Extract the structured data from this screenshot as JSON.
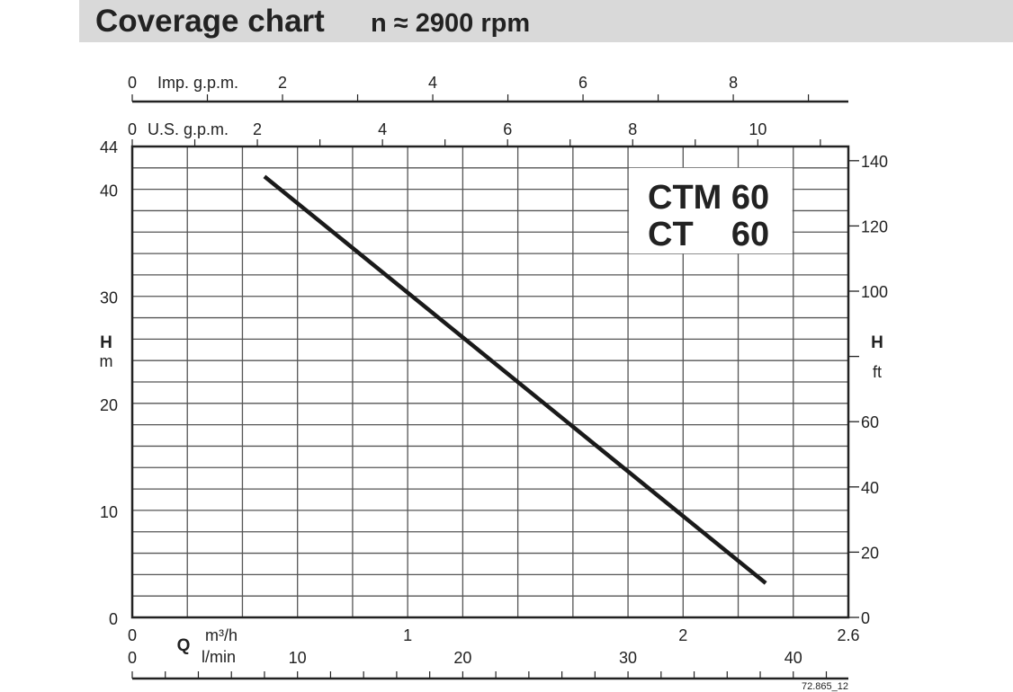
{
  "header": {
    "title": "Coverage chart",
    "speed": "n ≈ 2900 rpm"
  },
  "chart_data": {
    "type": "line",
    "title": "Coverage chart",
    "model_label": [
      "CTM 60",
      "CT    60"
    ],
    "xlabel": "Q",
    "x_units": {
      "primary": "m³/h",
      "secondary": "l/min",
      "top1": "U.S. g.p.m.",
      "top2": "Imp. g.p.m."
    },
    "ylabel": "H",
    "y_units": {
      "left": "m",
      "right": "ft"
    },
    "xlim": [
      0,
      2.6
    ],
    "ylim": [
      0,
      44
    ],
    "x_ticks_m3h": [
      "0",
      "1",
      "2",
      "2.6"
    ],
    "x_ticks_lmin": [
      "0",
      "10",
      "20",
      "30",
      "40"
    ],
    "x_ticks_usgpm": [
      "0",
      "2",
      "4",
      "6",
      "8",
      "10"
    ],
    "x_ticks_impgpm": [
      "0",
      "2",
      "4",
      "6",
      "8"
    ],
    "y_ticks_m": [
      "0",
      "10",
      "20",
      "30",
      "40",
      "44"
    ],
    "y_ticks_ft": [
      "0",
      "20",
      "40",
      "60",
      "100",
      "120",
      "140"
    ],
    "grid": true,
    "series": [
      {
        "name": "CTM 60 / CT 60",
        "x": [
          0.48,
          2.3
        ],
        "y": [
          41.2,
          3.2
        ]
      }
    ],
    "footnote": "72.865_12"
  }
}
